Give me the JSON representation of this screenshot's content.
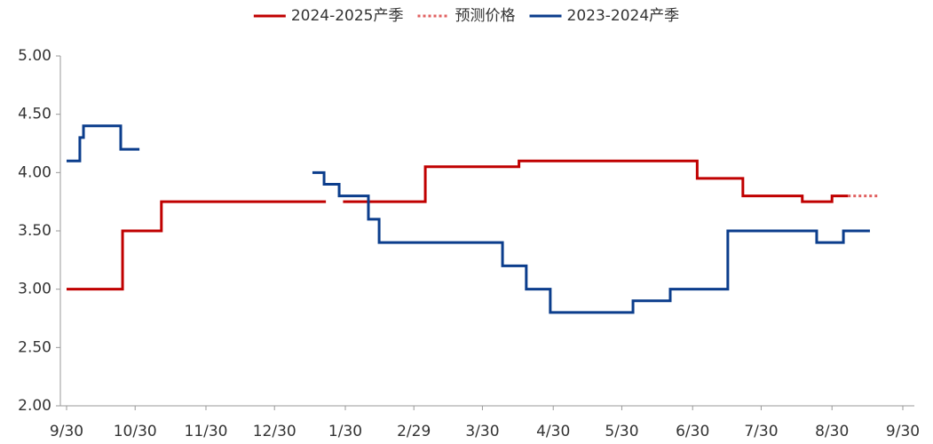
{
  "chart_data": {
    "type": "line",
    "xlim": [
      0,
      366
    ],
    "xticks": [
      {
        "value": 0,
        "label": "9/30"
      },
      {
        "value": 30,
        "label": "10/30"
      },
      {
        "value": 61,
        "label": "11/30"
      },
      {
        "value": 91,
        "label": "12/30"
      },
      {
        "value": 122,
        "label": "1/30"
      },
      {
        "value": 152,
        "label": "2/29"
      },
      {
        "value": 182,
        "label": "3/30"
      },
      {
        "value": 213,
        "label": "4/30"
      },
      {
        "value": 243,
        "label": "5/30"
      },
      {
        "value": 274,
        "label": "6/30"
      },
      {
        "value": 304,
        "label": "7/30"
      },
      {
        "value": 335,
        "label": "8/30"
      },
      {
        "value": 366,
        "label": "9/30"
      }
    ],
    "ylim": [
      2,
      5
    ],
    "yticks": [
      {
        "value": 2,
        "label": "2.00"
      },
      {
        "value": 2.5,
        "label": "2.50"
      },
      {
        "value": 3,
        "label": "3.00"
      },
      {
        "value": 3.5,
        "label": "3.50"
      },
      {
        "value": 4,
        "label": "4.00"
      },
      {
        "value": 4.5,
        "label": "4.50"
      },
      {
        "value": 5,
        "label": "5.00"
      }
    ],
    "grid": false,
    "legend": "top",
    "series": [
      {
        "name": "2024-2025产季",
        "color": "#c00000",
        "style": "solid",
        "x": [
          0,
          24.5,
          24.5,
          41.5,
          41.5,
          113.5,
          117,
          121,
          157,
          157,
          198,
          198,
          276,
          276,
          296,
          296,
          322,
          322,
          335,
          335,
          342
        ],
        "values": [
          3.0,
          3.0,
          3.5,
          3.5,
          3.75,
          3.75,
          null,
          3.75,
          3.75,
          4.05,
          4.05,
          4.1,
          4.1,
          3.95,
          3.95,
          3.8,
          3.8,
          3.75,
          3.75,
          3.8,
          3.8
        ]
      },
      {
        "name": "预测价格",
        "color": "#e06060",
        "style": "dotted",
        "x": [
          342,
          355.5
        ],
        "values": [
          3.8,
          3.8
        ]
      },
      {
        "name": "2023-2024产季",
        "color": "#0b3d8c",
        "style": "solid",
        "x": [
          0,
          5.8,
          5.8,
          7.4,
          7.4,
          23.7,
          23.7,
          31.9,
          70,
          107.6,
          112.7,
          112.7,
          119.3,
          119.3,
          132.1,
          132.1,
          136.8,
          136.8,
          190.8,
          190.8,
          201.2,
          201.2,
          211.7,
          211.7,
          247.9,
          247.9,
          264.2,
          264.2,
          289.4,
          289.4,
          328.3,
          328.3,
          340,
          340,
          351.6
        ],
        "values": [
          4.1,
          4.1,
          4.3,
          4.3,
          4.4,
          4.4,
          4.2,
          4.2,
          null,
          4.0,
          4.0,
          3.9,
          3.9,
          3.8,
          3.8,
          3.6,
          3.6,
          3.4,
          3.4,
          3.2,
          3.2,
          3.0,
          3.0,
          2.8,
          2.8,
          2.9,
          2.9,
          3.0,
          3.0,
          3.5,
          3.5,
          3.4,
          3.4,
          3.5,
          3.5
        ]
      }
    ]
  }
}
